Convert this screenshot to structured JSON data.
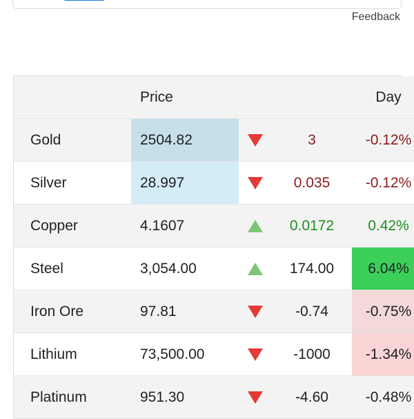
{
  "header": {
    "feedback_label": "Feedback"
  },
  "table": {
    "columns": {
      "name": "",
      "price": "Price",
      "arrow": "",
      "change": "",
      "day": "Day"
    },
    "rows": [
      {
        "name": "Gold",
        "price": "2504.82",
        "direction": "down",
        "change": "3",
        "day": "-0.12%"
      },
      {
        "name": "Silver",
        "price": "28.997",
        "direction": "down",
        "change": "0.035",
        "day": "-0.12%"
      },
      {
        "name": "Copper",
        "price": "4.1607",
        "direction": "up",
        "change": "0.0172",
        "day": "0.42%"
      },
      {
        "name": "Steel",
        "price": "3,054.00",
        "direction": "up",
        "change": "174.00",
        "day": "6.04%"
      },
      {
        "name": "Iron Ore",
        "price": "97.81",
        "direction": "down",
        "change": "-0.74",
        "day": "-0.75%"
      },
      {
        "name": "Lithium",
        "price": "73,500.00",
        "direction": "down",
        "change": "-1000",
        "day": "-1.34%"
      },
      {
        "name": "Platinum",
        "price": "951.30",
        "direction": "down",
        "change": "-4.60",
        "day": "-0.48%"
      }
    ]
  },
  "colors": {
    "down_arrow": "#e53935",
    "up_arrow": "#7cc576",
    "negative_text": "#8b1a1a",
    "positive_text": "#1e8e1e",
    "steel_day_highlight": "#3ccf5a",
    "price_highlight_gold": "#c7dfe9",
    "price_highlight_silver": "#d4ecf8",
    "tab_indicator": "#1a73e8"
  }
}
